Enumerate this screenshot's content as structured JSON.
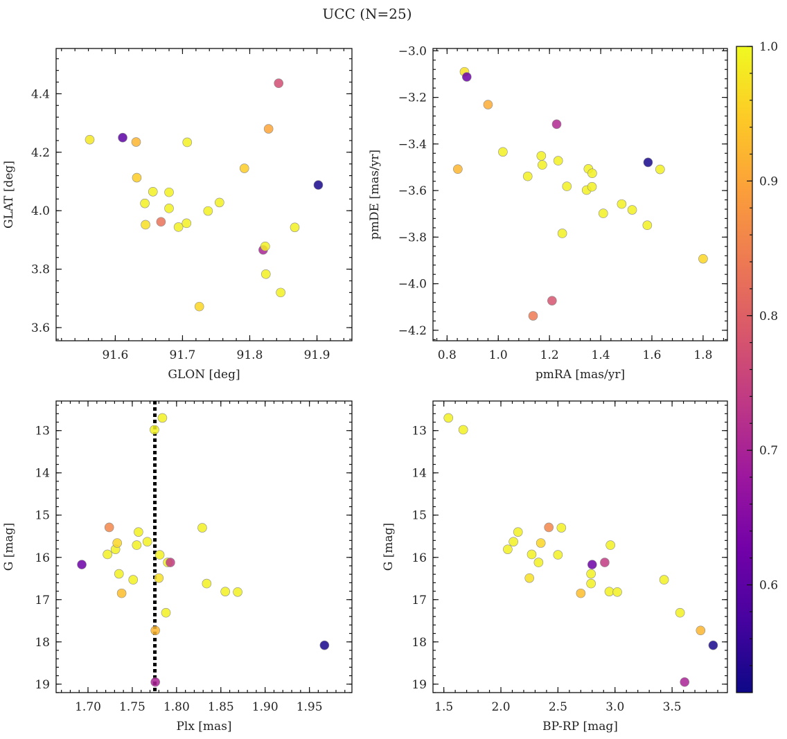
{
  "title": "UCC (N=25)",
  "colorbar": {
    "range": [
      0.52,
      1.0
    ],
    "ticks": [
      0.6,
      0.7,
      0.8,
      0.9,
      1.0
    ],
    "tick_labels": [
      "0.6",
      "0.7",
      "0.8",
      "0.9",
      "1.0"
    ],
    "colormap": "plasma",
    "stops": [
      "#0d0887",
      "#46039f",
      "#7201a8",
      "#9c179e",
      "#bd3786",
      "#d8576b",
      "#ed7953",
      "#fb9f3a",
      "#fdca26",
      "#f0f921"
    ]
  },
  "chart_data": [
    {
      "type": "scatter",
      "xlabel": "GLON [deg]",
      "ylabel": "GLAT [deg]",
      "xlim": [
        91.512,
        91.952
      ],
      "ylim": [
        3.555,
        4.555
      ],
      "xticks": [
        91.6,
        91.7,
        91.8,
        91.9
      ],
      "xtick_labels": [
        "91.6",
        "91.7",
        "91.8",
        "91.9"
      ],
      "yticks": [
        3.6,
        3.8,
        4.0,
        4.2,
        4.4
      ],
      "ytick_labels": [
        "3.6",
        "3.8",
        "4.0",
        "4.2",
        "4.4"
      ],
      "yinvert": false,
      "points": [
        {
          "x": 91.562,
          "y": 4.243,
          "c": 0.98
        },
        {
          "x": 91.611,
          "y": 4.25,
          "c": 0.6
        },
        {
          "x": 91.631,
          "y": 4.235,
          "c": 0.92
        },
        {
          "x": 91.632,
          "y": 4.113,
          "c": 0.95
        },
        {
          "x": 91.644,
          "y": 4.025,
          "c": 0.99
        },
        {
          "x": 91.656,
          "y": 4.065,
          "c": 0.99
        },
        {
          "x": 91.645,
          "y": 3.952,
          "c": 0.97
        },
        {
          "x": 91.668,
          "y": 3.962,
          "c": 0.83
        },
        {
          "x": 91.68,
          "y": 4.063,
          "c": 0.99
        },
        {
          "x": 91.68,
          "y": 4.008,
          "c": 0.99
        },
        {
          "x": 91.694,
          "y": 3.944,
          "c": 0.99
        },
        {
          "x": 91.706,
          "y": 3.957,
          "c": 0.99
        },
        {
          "x": 91.707,
          "y": 4.234,
          "c": 0.99
        },
        {
          "x": 91.725,
          "y": 3.672,
          "c": 0.96
        },
        {
          "x": 91.738,
          "y": 3.999,
          "c": 0.99
        },
        {
          "x": 91.755,
          "y": 4.028,
          "c": 0.99
        },
        {
          "x": 91.792,
          "y": 4.145,
          "c": 0.95
        },
        {
          "x": 91.82,
          "y": 3.866,
          "c": 0.7
        },
        {
          "x": 91.823,
          "y": 3.878,
          "c": 0.99
        },
        {
          "x": 91.824,
          "y": 3.783,
          "c": 0.99
        },
        {
          "x": 91.828,
          "y": 4.28,
          "c": 0.9
        },
        {
          "x": 91.843,
          "y": 4.436,
          "c": 0.77
        },
        {
          "x": 91.846,
          "y": 3.72,
          "c": 0.99
        },
        {
          "x": 91.867,
          "y": 3.943,
          "c": 0.99
        },
        {
          "x": 91.902,
          "y": 4.088,
          "c": 0.53
        }
      ]
    },
    {
      "type": "scatter",
      "xlabel": "pmRA [mas/yr]",
      "ylabel": "pmDE [mas/yr]",
      "xlim": [
        0.745,
        1.895
      ],
      "ylim": [
        -4.245,
        -2.99
      ],
      "xticks": [
        0.8,
        1.0,
        1.2,
        1.4,
        1.6,
        1.8
      ],
      "xtick_labels": [
        "0.8",
        "1.0",
        "1.2",
        "1.4",
        "1.6",
        "1.8"
      ],
      "yticks": [
        -4.2,
        -4.0,
        -3.8,
        -3.6,
        -3.4,
        -3.2,
        -3.0
      ],
      "ytick_labels": [
        "−4.2",
        "−4.0",
        "−3.8",
        "−3.6",
        "−3.4",
        "−3.2",
        "−3.0"
      ],
      "yinvert": false,
      "points": [
        {
          "x": 0.842,
          "y": -3.508,
          "c": 0.92
        },
        {
          "x": 0.868,
          "y": -3.09,
          "c": 0.97
        },
        {
          "x": 0.877,
          "y": -3.112,
          "c": 0.62
        },
        {
          "x": 0.96,
          "y": -3.231,
          "c": 0.91
        },
        {
          "x": 1.018,
          "y": -3.434,
          "c": 0.99
        },
        {
          "x": 1.115,
          "y": -3.539,
          "c": 0.99
        },
        {
          "x": 1.136,
          "y": -4.138,
          "c": 0.84
        },
        {
          "x": 1.168,
          "y": -3.451,
          "c": 0.99
        },
        {
          "x": 1.172,
          "y": -3.49,
          "c": 0.99
        },
        {
          "x": 1.21,
          "y": -4.073,
          "c": 0.78
        },
        {
          "x": 1.228,
          "y": -3.315,
          "c": 0.71
        },
        {
          "x": 1.234,
          "y": -3.472,
          "c": 0.99
        },
        {
          "x": 1.25,
          "y": -3.784,
          "c": 0.99
        },
        {
          "x": 1.268,
          "y": -3.582,
          "c": 0.99
        },
        {
          "x": 1.345,
          "y": -3.598,
          "c": 0.99
        },
        {
          "x": 1.352,
          "y": -3.507,
          "c": 0.99
        },
        {
          "x": 1.367,
          "y": -3.526,
          "c": 0.99
        },
        {
          "x": 1.366,
          "y": -3.584,
          "c": 0.99
        },
        {
          "x": 1.41,
          "y": -3.698,
          "c": 0.99
        },
        {
          "x": 1.482,
          "y": -3.658,
          "c": 0.99
        },
        {
          "x": 1.523,
          "y": -3.683,
          "c": 0.99
        },
        {
          "x": 1.582,
          "y": -3.749,
          "c": 0.99
        },
        {
          "x": 1.585,
          "y": -3.479,
          "c": 0.53
        },
        {
          "x": 1.632,
          "y": -3.509,
          "c": 0.99
        },
        {
          "x": 1.8,
          "y": -3.893,
          "c": 0.96
        }
      ]
    },
    {
      "type": "scatter",
      "xlabel": "Plx [mas]",
      "ylabel": "G [mag]",
      "xlim": [
        1.664,
        1.998
      ],
      "ylim": [
        12.3,
        19.2
      ],
      "xticks": [
        1.7,
        1.75,
        1.8,
        1.85,
        1.9,
        1.95
      ],
      "xtick_labels": [
        "1.70",
        "1.75",
        "1.80",
        "1.85",
        "1.90",
        "1.95"
      ],
      "yticks": [
        13,
        14,
        15,
        16,
        17,
        18,
        19
      ],
      "ytick_labels": [
        "13",
        "14",
        "15",
        "16",
        "17",
        "18",
        "19"
      ],
      "yinvert": true,
      "vline": 1.7755,
      "points": [
        {
          "x": 1.693,
          "y": 16.17,
          "c": 0.62
        },
        {
          "x": 1.722,
          "y": 15.93,
          "c": 0.99
        },
        {
          "x": 1.724,
          "y": 15.29,
          "c": 0.86
        },
        {
          "x": 1.731,
          "y": 15.81,
          "c": 0.99
        },
        {
          "x": 1.733,
          "y": 15.66,
          "c": 0.96
        },
        {
          "x": 1.735,
          "y": 16.39,
          "c": 0.99
        },
        {
          "x": 1.738,
          "y": 16.85,
          "c": 0.93
        },
        {
          "x": 1.751,
          "y": 16.53,
          "c": 0.99
        },
        {
          "x": 1.755,
          "y": 15.71,
          "c": 0.99
        },
        {
          "x": 1.757,
          "y": 15.4,
          "c": 0.99
        },
        {
          "x": 1.767,
          "y": 15.63,
          "c": 0.99
        },
        {
          "x": 1.775,
          "y": 12.98,
          "c": 0.99
        },
        {
          "x": 1.776,
          "y": 17.73,
          "c": 0.92
        },
        {
          "x": 1.776,
          "y": 18.95,
          "c": 0.7
        },
        {
          "x": 1.78,
          "y": 16.49,
          "c": 0.97
        },
        {
          "x": 1.781,
          "y": 15.94,
          "c": 0.99
        },
        {
          "x": 1.784,
          "y": 12.7,
          "c": 0.99
        },
        {
          "x": 1.788,
          "y": 17.31,
          "c": 0.99
        },
        {
          "x": 1.79,
          "y": 16.12,
          "c": 0.99
        },
        {
          "x": 1.793,
          "y": 16.12,
          "c": 0.74
        },
        {
          "x": 1.829,
          "y": 15.3,
          "c": 0.99
        },
        {
          "x": 1.834,
          "y": 16.62,
          "c": 0.99
        },
        {
          "x": 1.855,
          "y": 16.81,
          "c": 0.99
        },
        {
          "x": 1.869,
          "y": 16.82,
          "c": 0.99
        },
        {
          "x": 1.967,
          "y": 18.08,
          "c": 0.53
        }
      ]
    },
    {
      "type": "scatter",
      "xlabel": "BP-RP [mag]",
      "ylabel": "G [mag]",
      "xlim": [
        1.405,
        3.985
      ],
      "ylim": [
        12.3,
        19.2
      ],
      "xticks": [
        1.5,
        2.0,
        2.5,
        3.0,
        3.5
      ],
      "xtick_labels": [
        "1.5",
        "2.0",
        "2.5",
        "3.0",
        "3.5"
      ],
      "yticks": [
        13,
        14,
        15,
        16,
        17,
        18,
        19
      ],
      "ytick_labels": [
        "13",
        "14",
        "15",
        "16",
        "17",
        "18",
        "19"
      ],
      "yinvert": true,
      "points": [
        {
          "x": 1.54,
          "y": 12.7,
          "c": 0.99
        },
        {
          "x": 1.67,
          "y": 12.98,
          "c": 0.99
        },
        {
          "x": 2.06,
          "y": 15.81,
          "c": 0.99
        },
        {
          "x": 2.11,
          "y": 15.63,
          "c": 0.99
        },
        {
          "x": 2.15,
          "y": 15.4,
          "c": 0.99
        },
        {
          "x": 2.25,
          "y": 16.49,
          "c": 0.97
        },
        {
          "x": 2.27,
          "y": 15.93,
          "c": 0.99
        },
        {
          "x": 2.33,
          "y": 16.12,
          "c": 0.99
        },
        {
          "x": 2.35,
          "y": 15.66,
          "c": 0.96
        },
        {
          "x": 2.42,
          "y": 15.29,
          "c": 0.86
        },
        {
          "x": 2.5,
          "y": 15.94,
          "c": 0.99
        },
        {
          "x": 2.53,
          "y": 15.3,
          "c": 0.99
        },
        {
          "x": 2.7,
          "y": 16.85,
          "c": 0.93
        },
        {
          "x": 2.79,
          "y": 16.39,
          "c": 0.99
        },
        {
          "x": 2.79,
          "y": 16.62,
          "c": 0.99
        },
        {
          "x": 2.8,
          "y": 16.17,
          "c": 0.62
        },
        {
          "x": 2.91,
          "y": 16.12,
          "c": 0.74
        },
        {
          "x": 2.95,
          "y": 16.81,
          "c": 0.99
        },
        {
          "x": 2.96,
          "y": 15.71,
          "c": 0.99
        },
        {
          "x": 3.02,
          "y": 16.82,
          "c": 0.99
        },
        {
          "x": 3.43,
          "y": 16.53,
          "c": 0.99
        },
        {
          "x": 3.57,
          "y": 17.31,
          "c": 0.99
        },
        {
          "x": 3.61,
          "y": 18.95,
          "c": 0.7
        },
        {
          "x": 3.75,
          "y": 17.73,
          "c": 0.92
        },
        {
          "x": 3.86,
          "y": 18.08,
          "c": 0.53
        }
      ]
    }
  ]
}
